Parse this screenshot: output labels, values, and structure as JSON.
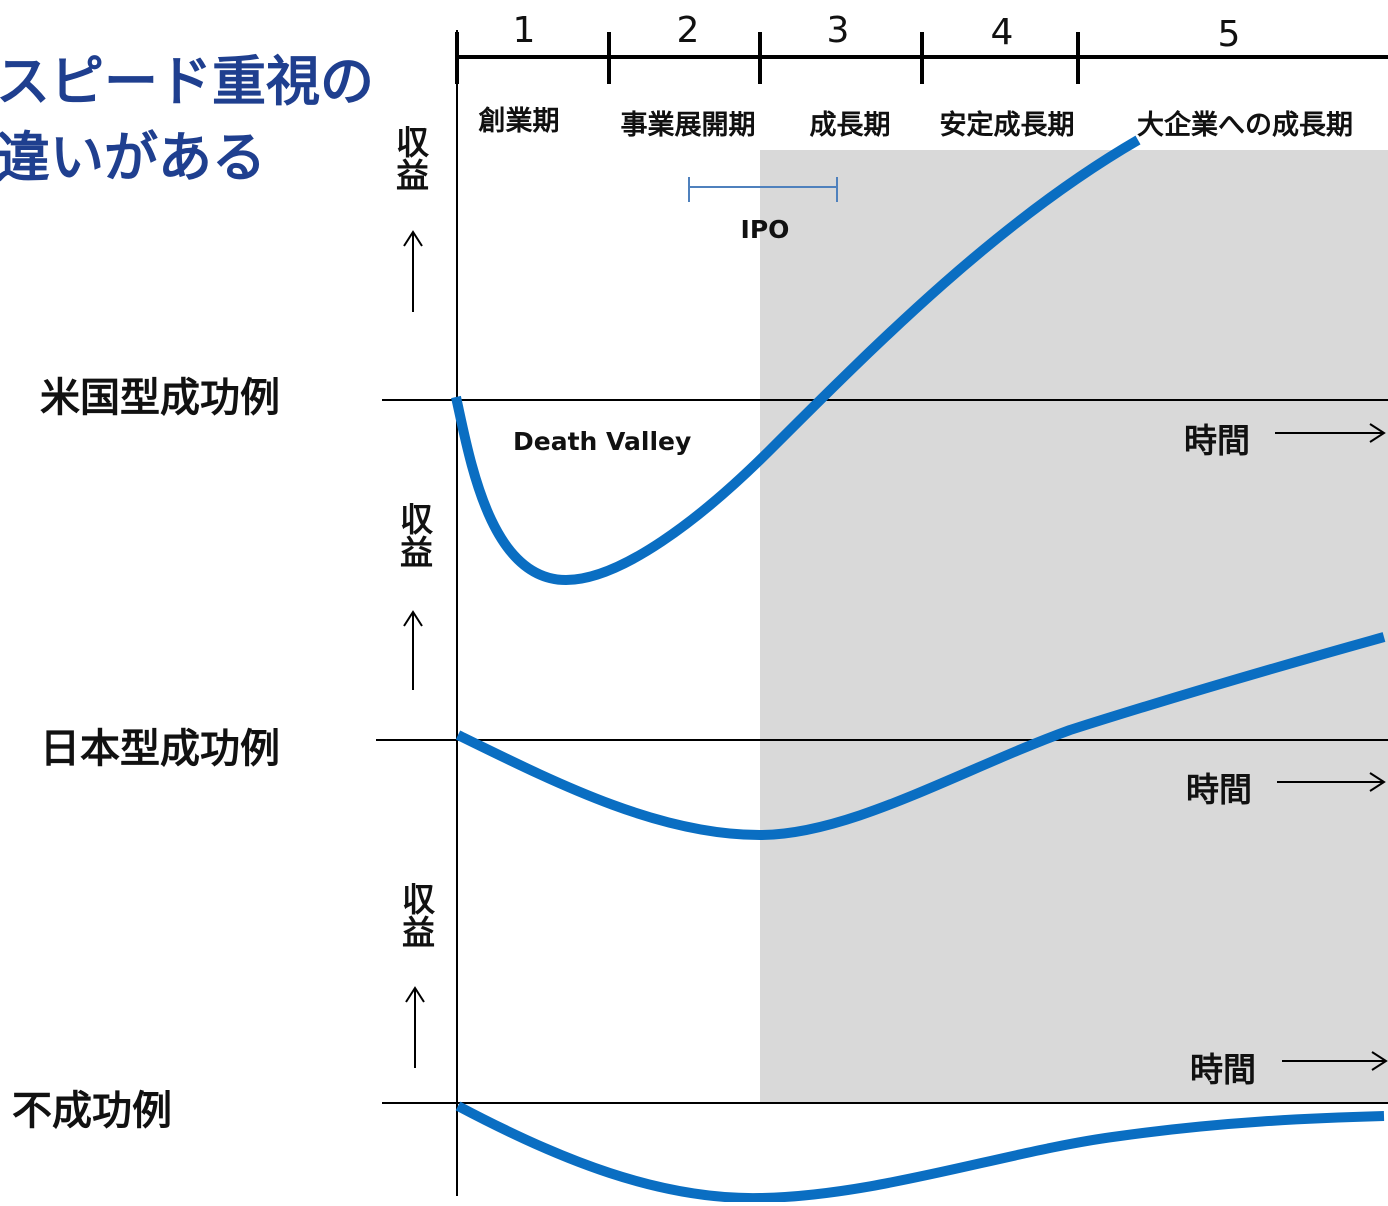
{
  "title": {
    "line1": "スピード重視の",
    "line2": "違いがある"
  },
  "phases": [
    {
      "num": "1",
      "name": "創業期"
    },
    {
      "num": "2",
      "name": "事業展開期"
    },
    {
      "num": "3",
      "name": "成長期"
    },
    {
      "num": "4",
      "name": "安定成長期"
    },
    {
      "num": "5",
      "name": "大企業への成長期"
    }
  ],
  "ipo_label": "IPO",
  "death_valley_label": "Death Valley",
  "rows": [
    {
      "label": "米国型成功例",
      "y_axis": "収益",
      "x_axis": "時間"
    },
    {
      "label": "日本型成功例",
      "y_axis": "収益",
      "x_axis": "時間"
    },
    {
      "label": "不成功例",
      "y_axis": "収益",
      "x_axis": "時間"
    }
  ],
  "colors": {
    "curve": "#0a6ec2",
    "ipo": "#4f81bd",
    "shade": "#d9d9d9",
    "title": "#1f3f8f"
  }
}
